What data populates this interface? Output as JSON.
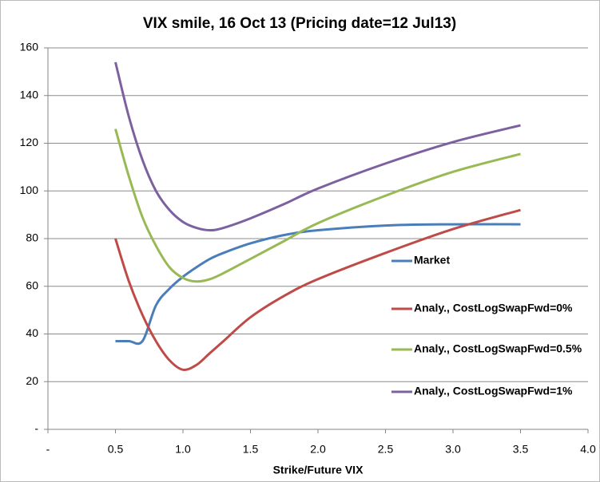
{
  "chart_data": {
    "type": "line",
    "title": "VIX smile, 16 Oct 13 (Pricing date=12 Jul13)",
    "xlabel": "Strike/Future VIX",
    "x": [
      0.5,
      0.6,
      0.7,
      0.8,
      0.9,
      1.0,
      1.1,
      1.2,
      1.3,
      1.5,
      1.75,
      2.0,
      2.5,
      3.0,
      3.5
    ],
    "series": [
      {
        "name": "Market",
        "color": "#4a7ebb",
        "values": [
          37,
          37,
          37,
          52,
          59,
          64,
          68,
          71.5,
          74,
          78,
          81.5,
          83.5,
          85.5,
          86,
          86
        ]
      },
      {
        "name": "Analy., CostLogSwapFwd=0%",
        "color": "#be4b48",
        "values": [
          80,
          62,
          48,
          37,
          29,
          25,
          27,
          32,
          37,
          47,
          56,
          63,
          74,
          84,
          92
        ]
      },
      {
        "name": "Analy., CostLogSwapFwd=0.5%",
        "color": "#98b954",
        "values": [
          126,
          106,
          89,
          77,
          68,
          63.5,
          62,
          63,
          65.5,
          71.5,
          79,
          86.5,
          98,
          108,
          115.5
        ]
      },
      {
        "name": "Analy., CostLogSwapFwd=1%",
        "color": "#7d60a0",
        "values": [
          154,
          131,
          113,
          100,
          92,
          87,
          84.5,
          83.5,
          84.5,
          88.5,
          94.5,
          101,
          111.5,
          120.5,
          127.5
        ]
      }
    ],
    "xlim": [
      0,
      4
    ],
    "xticks": [
      {
        "value": 0,
        "label": "-"
      },
      0.5,
      {
        "value": 1,
        "label": "1.0"
      },
      1.5,
      {
        "value": 2,
        "label": "2.0"
      },
      2.5,
      {
        "value": 3,
        "label": "3.0"
      },
      3.5,
      {
        "value": 4,
        "label": "4.0"
      }
    ],
    "ylim": [
      0,
      160
    ],
    "yticks": [
      {
        "value": 0,
        "label": "-"
      },
      20,
      40,
      60,
      80,
      100,
      120,
      140,
      160
    ],
    "grid": true,
    "legend": "right"
  }
}
